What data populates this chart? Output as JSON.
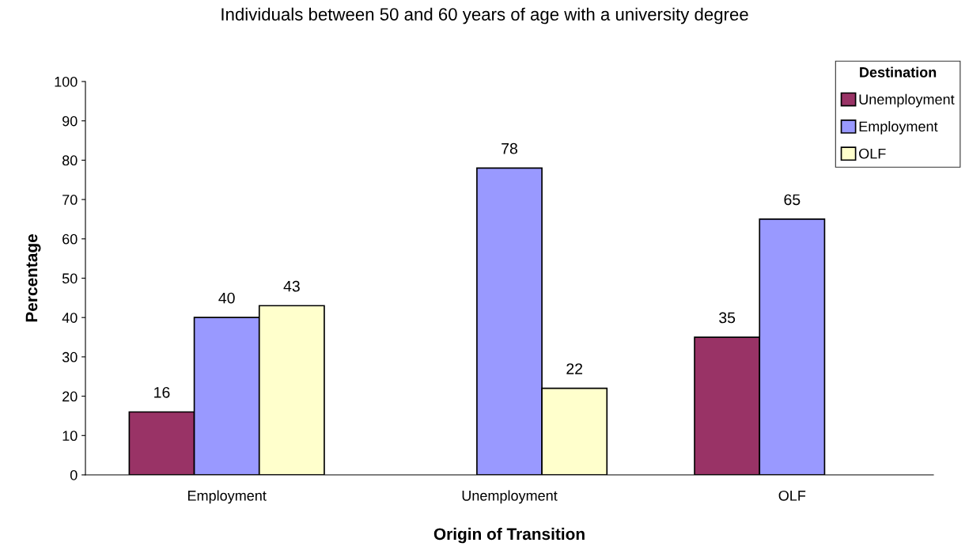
{
  "chart_data": {
    "type": "bar",
    "subtitle": "Individuals between 50 and 60 years of age with a university degree",
    "xlabel": "Origin of Transition",
    "ylabel": "Percentage",
    "legend_title": "Destination",
    "categories": [
      "Employment",
      "Unemployment",
      "OLF"
    ],
    "series": [
      {
        "name": "Unemployment",
        "color": "#993366",
        "values": [
          16,
          null,
          35
        ]
      },
      {
        "name": "Employment",
        "color": "#9999ff",
        "values": [
          40,
          78,
          65
        ]
      },
      {
        "name": "OLF",
        "color": "#ffffcc",
        "values": [
          43,
          22,
          null
        ]
      }
    ],
    "ylim": [
      0,
      100
    ],
    "yticks": [
      0,
      10,
      20,
      30,
      40,
      50,
      60,
      70,
      80,
      90,
      100
    ],
    "data_labels": true,
    "legend": "top right",
    "grid": false
  }
}
